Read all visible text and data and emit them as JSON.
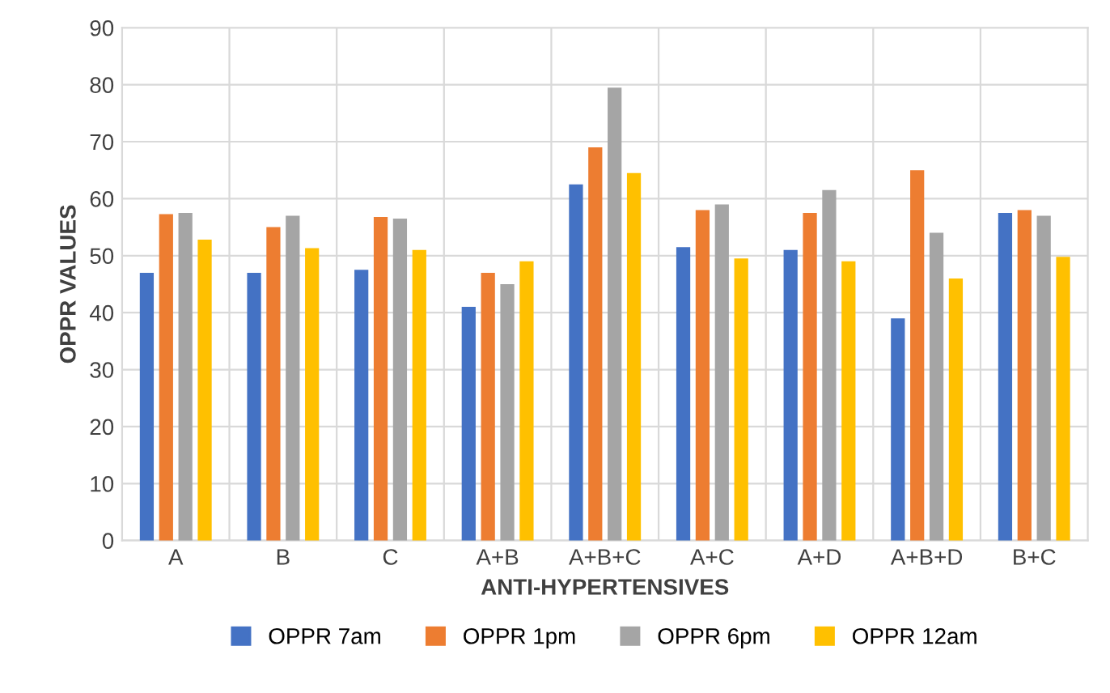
{
  "chart_data": {
    "type": "bar",
    "xlabel": "ANTI-HYPERTENSIVES",
    "ylabel": "OPPR VALUES",
    "categories": [
      "A",
      "B",
      "C",
      "A+B",
      "A+B+C",
      "A+C",
      "A+D",
      "A+B+D",
      "B+C"
    ],
    "series": [
      {
        "name": "OPPR 7am",
        "color": "#4472c4",
        "values": [
          47,
          47,
          47.5,
          41,
          62.5,
          51.5,
          51,
          39,
          57.5
        ]
      },
      {
        "name": "OPPR 1pm",
        "color": "#ed7d31",
        "values": [
          57.3,
          55,
          56.8,
          47,
          69,
          58,
          57.5,
          65,
          58
        ]
      },
      {
        "name": "OPPR 6pm",
        "color": "#a5a5a5",
        "values": [
          57.5,
          57,
          56.5,
          45,
          79.5,
          59,
          61.5,
          54,
          57
        ]
      },
      {
        "name": "OPPR 12am",
        "color": "#ffc000",
        "values": [
          52.8,
          51.3,
          51,
          49,
          64.5,
          49.5,
          49,
          46,
          49.8
        ]
      }
    ],
    "ylim": [
      0,
      90
    ],
    "yticks": [
      0,
      10,
      20,
      30,
      40,
      50,
      60,
      70,
      80,
      90
    ],
    "grid": true,
    "legend": "bottom"
  }
}
